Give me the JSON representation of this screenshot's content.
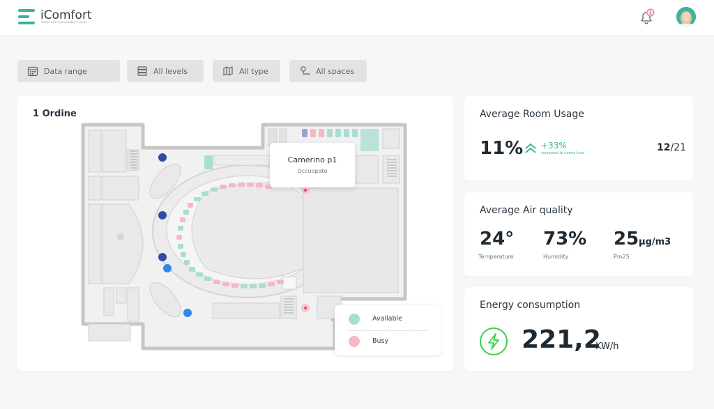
{
  "app": {
    "name": "iComfort",
    "tagline": "SMART AND SUSTAINABLE PLACES",
    "notifications_count": "1"
  },
  "filters": {
    "date_range": "Data range",
    "levels": "All levels",
    "type": "All type",
    "spaces": "All spaces"
  },
  "map": {
    "title": "1 Ordine",
    "tooltip": {
      "title": "Camerino p1",
      "subtitle": "Occuopato"
    },
    "legend": {
      "available": "Available",
      "busy": "Busy"
    }
  },
  "room_usage": {
    "title": "Average Room Usage",
    "value": "11%",
    "trend": "+33%",
    "trend_caption": "compared to normal use",
    "count_used": "12",
    "count_sep": "/",
    "count_total": "21"
  },
  "air_quality": {
    "title": "Average Air quality",
    "temperature": {
      "value": "24°",
      "label": "Temperature"
    },
    "humidity": {
      "value": "73%",
      "label": "Humidity"
    },
    "pm": {
      "value": "25",
      "unit": "µg/m3",
      "label": "Pm25"
    }
  },
  "energy": {
    "title": "Energy consumption",
    "value": "221,2",
    "unit": "KW/h"
  },
  "colors": {
    "accent": "#3fb29c",
    "available": "#a8ddd3",
    "busy": "#f5b8c5",
    "energy_green": "#39d04a",
    "icon_blue": "#2f4da0"
  }
}
